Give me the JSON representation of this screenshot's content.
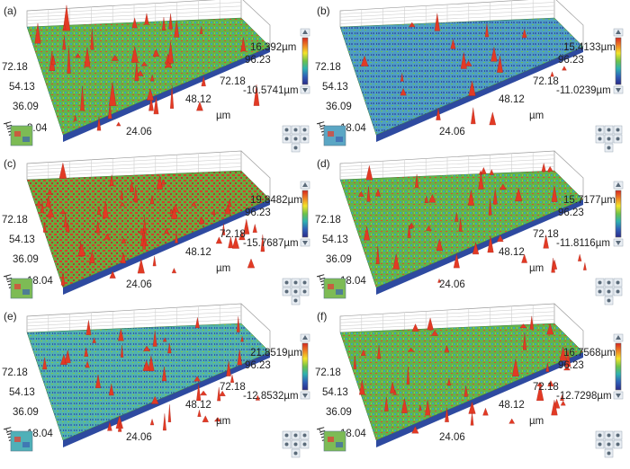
{
  "colors": {
    "peak": "#e23a24",
    "surface_green": "#5fb24a",
    "surface_cyan": "#4fb3c8",
    "valley_blue": "#2b3f9c",
    "colorbar_stops": [
      "#d7261e",
      "#f08a24",
      "#f2e42a",
      "#6cc24a",
      "#2fb2b0",
      "#2f5fb8",
      "#2a2a8a"
    ]
  },
  "panels": [
    {
      "label": "(a)",
      "max": "16.392µm",
      "min": "-10.5741µm",
      "y_ticks": [
        "72.18",
        "54.13",
        "36.09",
        "8.04"
      ],
      "x_ticks": [
        "96.23",
        "72.18",
        "48.12",
        "24.06"
      ],
      "unit_y": "µm",
      "unit_x": "µm",
      "style": "green-red"
    },
    {
      "label": "(b)",
      "max": "15.4133µm",
      "min": "-11.0239µm",
      "y_ticks": [
        "72.18",
        "54.13",
        "36.09",
        "18.04"
      ],
      "x_ticks": [
        "96.23",
        "72.18",
        "48.12",
        "24.06"
      ],
      "unit_y": "µm",
      "unit_x": "µm",
      "style": "blue"
    },
    {
      "label": "(c)",
      "max": "19.8482µm",
      "min": "-15.7687µm",
      "y_ticks": [
        "72.18",
        "54.13",
        "36.09",
        "18.04"
      ],
      "x_ticks": [
        "96.23",
        "72.18",
        "48.12",
        "24.06"
      ],
      "unit_y": "µm",
      "unit_x": "µm",
      "style": "red"
    },
    {
      "label": "(d)",
      "max": "15.7177µm",
      "min": "-11.8116µm",
      "y_ticks": [
        "72.18",
        "54.13",
        "36.09",
        "18.04"
      ],
      "x_ticks": [
        "96.23",
        "72.18",
        "48.12",
        "24.06"
      ],
      "unit_y": "µm",
      "unit_x": "µm",
      "style": "green-red"
    },
    {
      "label": "(e)",
      "max": "21.8519µm",
      "min": "-12.8532µm",
      "y_ticks": [
        "72.18",
        "54.13",
        "36.09",
        "18.04"
      ],
      "x_ticks": [
        "96.23",
        "72.18",
        "48.12",
        "24.06"
      ],
      "unit_y": "µm",
      "unit_x": "µm",
      "style": "cyan"
    },
    {
      "label": "(f)",
      "max": "16.7568µm",
      "min": "-12.7298µm",
      "y_ticks": [
        "72.18",
        "54.13",
        "36.09",
        "18.04"
      ],
      "x_ticks": [
        "96.23",
        "72.18",
        "48.12",
        "24.06"
      ],
      "unit_y": "µm",
      "unit_x": "µm",
      "style": "green-red"
    }
  ]
}
